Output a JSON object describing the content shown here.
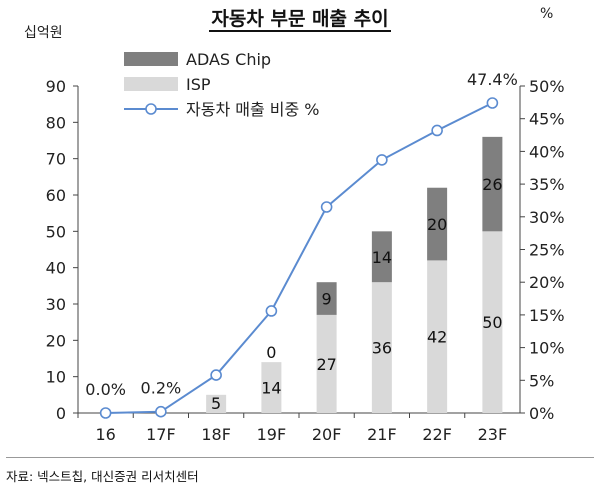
{
  "chart_data": {
    "type": "bar",
    "title": "자동차 부문 매출 추이",
    "ylabel_left": "십억원",
    "ylabel_right": "%",
    "categories": [
      "16",
      "17F",
      "18F",
      "19F",
      "20F",
      "21F",
      "22F",
      "23F"
    ],
    "series": [
      {
        "name": "ISP",
        "kind": "bar",
        "axis": "left",
        "color": "#d9d9d9",
        "values": [
          0,
          0,
          5,
          14,
          27,
          36,
          42,
          50
        ],
        "labels": [
          "",
          "",
          "5",
          "14",
          "27",
          "36",
          "42",
          "50"
        ]
      },
      {
        "name": "ADAS Chip",
        "kind": "bar",
        "axis": "left",
        "color": "#7f7f7f",
        "values": [
          0,
          0,
          0,
          0,
          9,
          14,
          20,
          26
        ],
        "labels": [
          "",
          "",
          "",
          "0",
          "9",
          "14",
          "20",
          "26"
        ]
      },
      {
        "name": "자동차 매출 비중 %",
        "kind": "line",
        "axis": "right",
        "color": "#5b8bd0",
        "values": [
          0.0,
          0.2,
          5.8,
          15.6,
          31.5,
          38.7,
          43.2,
          47.4
        ]
      }
    ],
    "line_annotations": [
      {
        "index": 0,
        "text": "0.0%"
      },
      {
        "index": 1,
        "text": "0.2%"
      },
      {
        "index": 7,
        "text": "47.4%"
      }
    ],
    "ylim_left": [
      0,
      90
    ],
    "yticks_left": [
      "0",
      "10",
      "20",
      "30",
      "40",
      "50",
      "60",
      "70",
      "80",
      "90"
    ],
    "ylim_right": [
      0,
      50
    ],
    "yticks_right": [
      "0%",
      "5%",
      "10%",
      "15%",
      "20%",
      "25%",
      "30%",
      "35%",
      "40%",
      "45%",
      "50%"
    ],
    "legend_position": "top-left",
    "source": "자료: 넥스트칩, 대신증권 리서치센터"
  }
}
